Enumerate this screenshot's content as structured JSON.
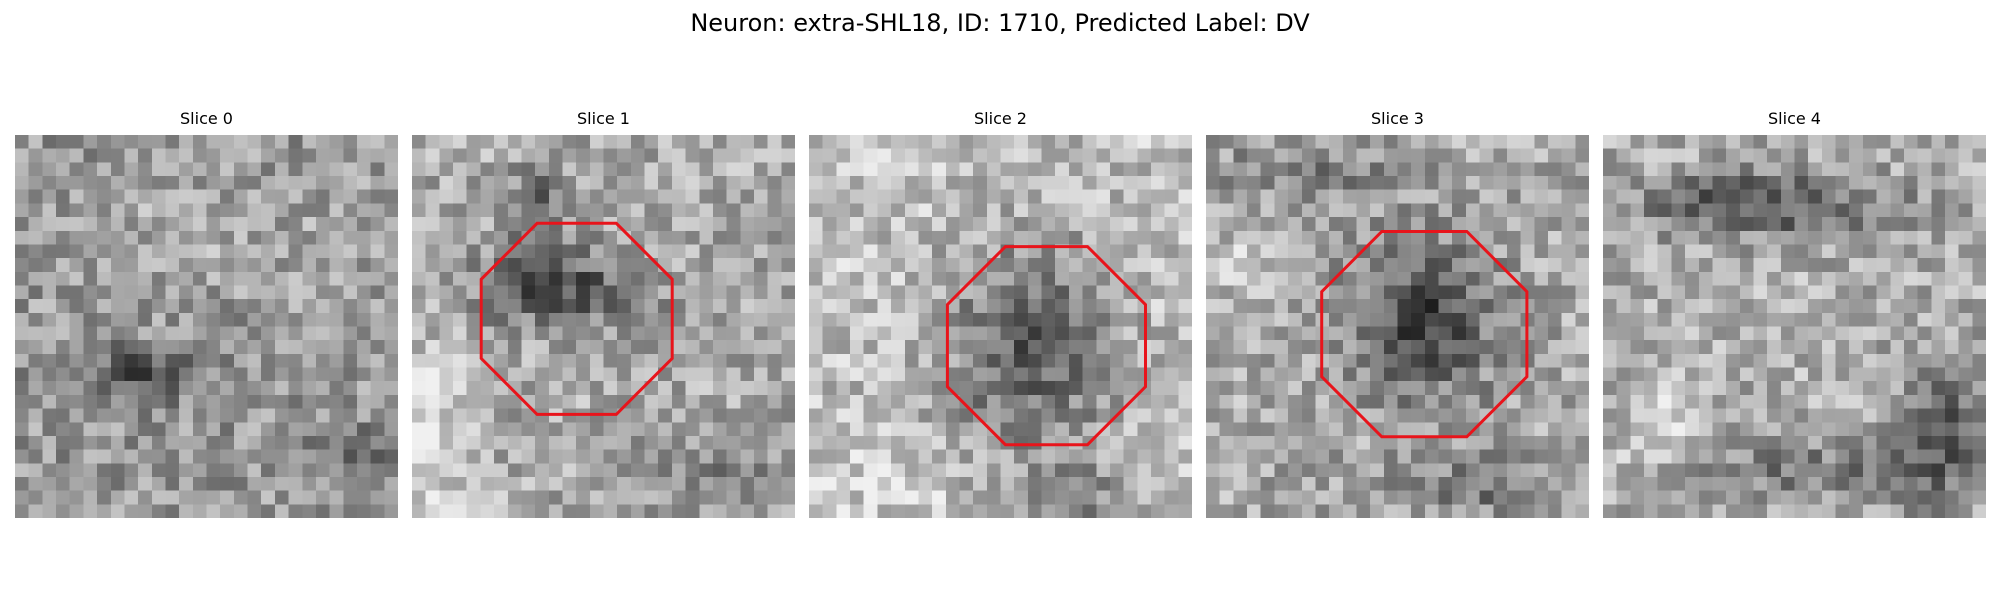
{
  "figure": {
    "title": "Neuron: extra-SHL18, ID: 1710, Predicted Label: DV"
  },
  "panels": [
    {
      "title": "Slice 0",
      "brightness": "mixed",
      "dark_blob": "faint horizontal dark band near lower middle",
      "has_roi": false
    },
    {
      "title": "Slice 1",
      "brightness": "mixed",
      "dark_blob": "dark arc in upper part of octagon",
      "has_roi": true,
      "roi_color": "#e8141b",
      "roi_shape": "octagon"
    },
    {
      "title": "Slice 2",
      "brightness": "light surround, darker center",
      "dark_blob": "dark oval filling octagon",
      "has_roi": true,
      "roi_color": "#e8141b",
      "roi_shape": "octagon"
    },
    {
      "title": "Slice 3",
      "brightness": "mixed",
      "dark_blob": "dark cluster inside octagon",
      "has_roi": true,
      "roi_color": "#e8141b",
      "roi_shape": "octagon"
    },
    {
      "title": "Slice 4",
      "brightness": "mixed",
      "dark_blob": "dark band across top, dark patches lower right",
      "has_roi": false
    }
  ],
  "colormap": "grayscale",
  "grid_cells": 28
}
